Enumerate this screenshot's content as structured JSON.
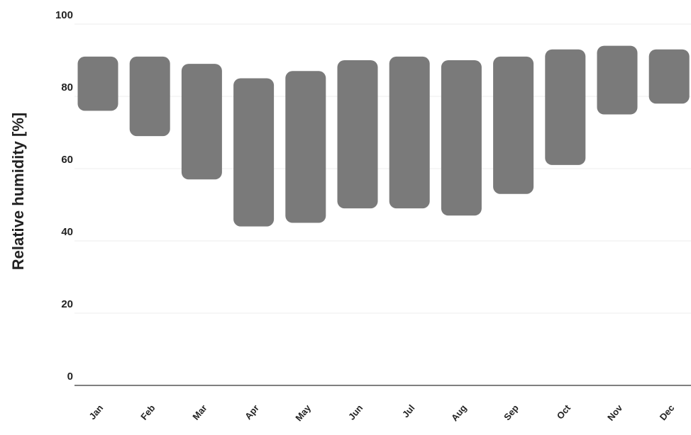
{
  "chart_data": {
    "type": "bar",
    "subtype": "floating-range",
    "ylabel": "Relative humidity [%]",
    "xlabel": "",
    "ylim": [
      0,
      100
    ],
    "yticks": [
      0,
      20,
      40,
      60,
      80,
      100
    ],
    "grid": true,
    "bar_color": "#7a7a7a",
    "categories": [
      "Jan",
      "Feb",
      "Mar",
      "Apr",
      "May",
      "Jun",
      "Jul",
      "Aug",
      "Sep",
      "Oct",
      "Nov",
      "Dec"
    ],
    "series": [
      {
        "name": "",
        "low": [
          76,
          69,
          57,
          44,
          45,
          49,
          49,
          47,
          53,
          61,
          75,
          78
        ],
        "high": [
          91,
          91,
          89,
          85,
          87,
          90,
          91,
          90,
          91,
          93,
          94,
          93
        ]
      }
    ]
  }
}
